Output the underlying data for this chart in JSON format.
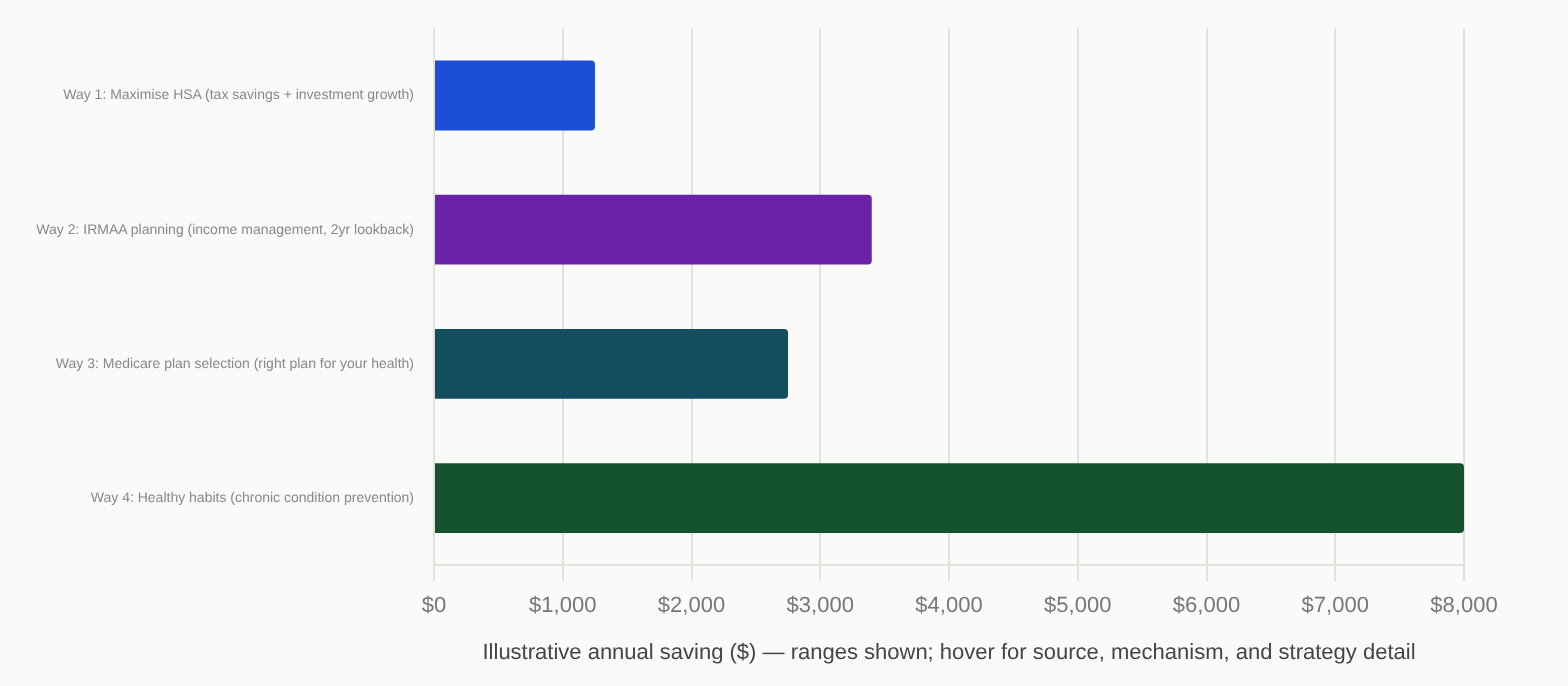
{
  "chart_data": {
    "type": "bar",
    "orientation": "horizontal",
    "xlabel": "Illustrative annual saving ($) — ranges shown; hover for source, mechanism, and strategy detail",
    "categories": [
      "Way 1: Maximise HSA (tax savings + investment growth)",
      "Way 2: IRMAA planning (income management, 2yr lookback)",
      "Way 3: Medicare plan selection (right plan for your health)",
      "Way 4: Healthy habits (chronic condition prevention)"
    ],
    "values": [
      1250,
      3400,
      2750,
      8000
    ],
    "colors": [
      "#1d4ed8",
      "#6b21a8",
      "#134e5e",
      "#14532d"
    ],
    "xlim": [
      0,
      8000
    ],
    "xticks": [
      {
        "value": 0,
        "label": "$0"
      },
      {
        "value": 1000,
        "label": "$1,000"
      },
      {
        "value": 2000,
        "label": "$2,000"
      },
      {
        "value": 3000,
        "label": "$3,000"
      },
      {
        "value": 4000,
        "label": "$4,000"
      },
      {
        "value": 5000,
        "label": "$5,000"
      },
      {
        "value": 6000,
        "label": "$6,000"
      },
      {
        "value": 7000,
        "label": "$7,000"
      },
      {
        "value": 8000,
        "label": "$8,000"
      }
    ],
    "grid": "x",
    "legend": false
  }
}
